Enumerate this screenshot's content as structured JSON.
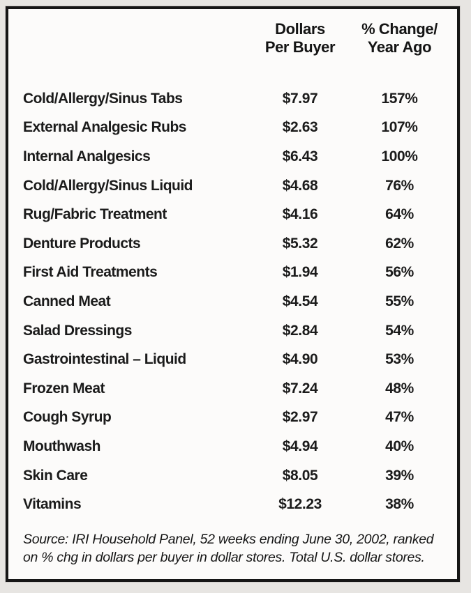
{
  "colors": {
    "page_background": "#e7e5e2",
    "panel_background": "#fcfbfa",
    "border": "#161616",
    "text": "#1b1b1b"
  },
  "table": {
    "header": {
      "dollars_line1": "Dollars",
      "dollars_line2": "Per Buyer",
      "change_line1": "% Change/",
      "change_line2": "Year Ago"
    },
    "rows": [
      {
        "category": "Cold/Allergy/Sinus Tabs",
        "dollars": "$7.97",
        "change": "157%"
      },
      {
        "category": "External Analgesic Rubs",
        "dollars": "$2.63",
        "change": "107%"
      },
      {
        "category": "Internal Analgesics",
        "dollars": "$6.43",
        "change": "100%"
      },
      {
        "category": "Cold/Allergy/Sinus Liquid",
        "dollars": "$4.68",
        "change": "76%"
      },
      {
        "category": "Rug/Fabric Treatment",
        "dollars": "$4.16",
        "change": "64%"
      },
      {
        "category": "Denture Products",
        "dollars": "$5.32",
        "change": "62%"
      },
      {
        "category": "First Aid Treatments",
        "dollars": "$1.94",
        "change": "56%"
      },
      {
        "category": "Canned Meat",
        "dollars": "$4.54",
        "change": "55%"
      },
      {
        "category": "Salad Dressings",
        "dollars": "$2.84",
        "change": "54%"
      },
      {
        "category": "Gastrointestinal – Liquid",
        "dollars": "$4.90",
        "change": "53%"
      },
      {
        "category": "Frozen Meat",
        "dollars": "$7.24",
        "change": "48%"
      },
      {
        "category": "Cough Syrup",
        "dollars": "$2.97",
        "change": "47%"
      },
      {
        "category": "Mouthwash",
        "dollars": "$4.94",
        "change": "40%"
      },
      {
        "category": "Skin Care",
        "dollars": "$8.05",
        "change": "39%"
      },
      {
        "category": "Vitamins",
        "dollars": "$12.23",
        "change": "38%"
      }
    ],
    "source_lines": [
      "Source: IRI Household Panel, 52 weeks ending June 30, 2002, ranked",
      "on % chg in dollars per buyer in dollar stores. Total U.S. dollar stores."
    ]
  },
  "chart_data": {
    "type": "table",
    "title": "",
    "columns": [
      "Category",
      "Dollars Per Buyer",
      "% Change/Year Ago"
    ],
    "categories": [
      "Cold/Allergy/Sinus Tabs",
      "External Analgesic Rubs",
      "Internal Analgesics",
      "Cold/Allergy/Sinus Liquid",
      "Rug/Fabric Treatment",
      "Denture Products",
      "First Aid Treatments",
      "Canned Meat",
      "Salad Dressings",
      "Gastrointestinal – Liquid",
      "Frozen Meat",
      "Cough Syrup",
      "Mouthwash",
      "Skin Care",
      "Vitamins"
    ],
    "series": [
      {
        "name": "Dollars Per Buyer",
        "values": [
          7.97,
          2.63,
          6.43,
          4.68,
          4.16,
          5.32,
          1.94,
          4.54,
          2.84,
          4.9,
          7.24,
          2.97,
          4.94,
          8.05,
          12.23
        ]
      },
      {
        "name": "% Change/Year Ago",
        "values": [
          157,
          107,
          100,
          76,
          64,
          62,
          56,
          55,
          54,
          53,
          48,
          47,
          40,
          39,
          38
        ]
      }
    ],
    "annotations": [
      "Source: IRI Household Panel, 52 weeks ending June 30, 2002, ranked on % chg in dollars per buyer in dollar stores. Total U.S. dollar stores."
    ]
  }
}
